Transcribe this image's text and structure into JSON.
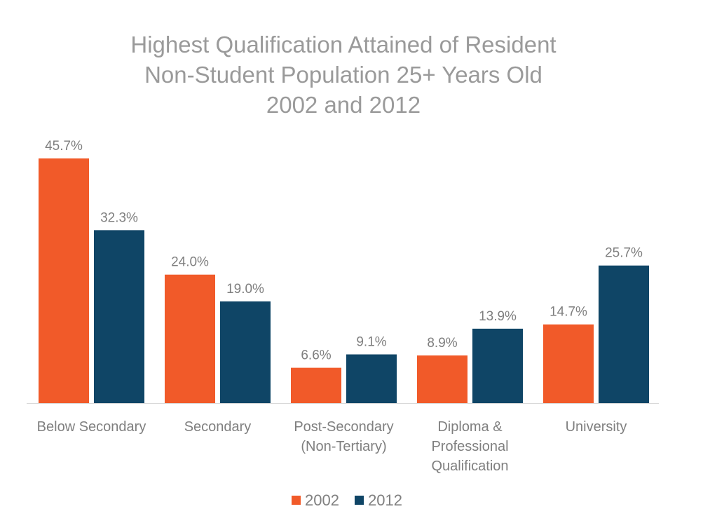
{
  "chart_data": {
    "type": "bar",
    "title": "Highest Qualification Attained of Resident Non-Student Population 25+ Years Old 2002 and 2012",
    "title_lines": [
      "Highest Qualification Attained of Resident",
      "Non-Student Population 25+ Years Old",
      "2002 and 2012"
    ],
    "categories": [
      [
        "Below Secondary"
      ],
      [
        "Secondary"
      ],
      [
        "Post-Secondary",
        "(Non-Tertiary)"
      ],
      [
        "Diploma &",
        "Professional",
        "Qualification"
      ],
      [
        "University"
      ]
    ],
    "series": [
      {
        "name": "2002",
        "color": "#F15A29",
        "values": [
          45.7,
          24.0,
          6.6,
          8.9,
          14.7
        ],
        "labels": [
          "45.7%",
          "24.0%",
          "6.6%",
          "8.9%",
          "14.7%"
        ]
      },
      {
        "name": "2012",
        "color": "#0F4566",
        "values": [
          32.3,
          19.0,
          9.1,
          13.9,
          25.7
        ],
        "labels": [
          "32.3%",
          "19.0%",
          "9.1%",
          "13.9%",
          "25.7%"
        ]
      }
    ],
    "ylim": [
      0,
      50
    ],
    "grid": false,
    "legend": "bottom",
    "xlabel": "",
    "ylabel": ""
  }
}
